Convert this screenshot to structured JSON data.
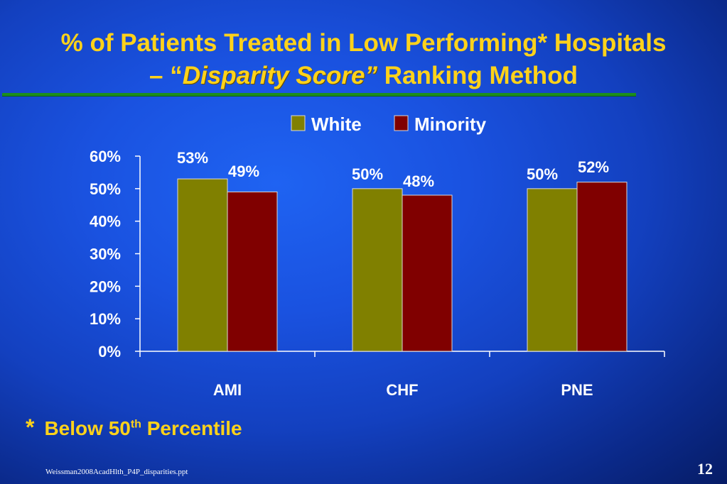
{
  "title": {
    "line1": "% of Patients Treated in Low Performing* Hospitals",
    "line2_prefix": "– “",
    "line2_emphasis": "Disparity Score”",
    "line2_suffix": " Ranking Method"
  },
  "chart_data": {
    "type": "bar",
    "categories": [
      "AMI",
      "CHF",
      "PNE"
    ],
    "series": [
      {
        "name": "White",
        "values": [
          53,
          50,
          50
        ],
        "labels": [
          "53%",
          "50%",
          "50%"
        ],
        "color": "#808000"
      },
      {
        "name": "Minority",
        "values": [
          49,
          48,
          52
        ],
        "labels": [
          "49%",
          "48%",
          "52%"
        ],
        "color": "#800000"
      }
    ],
    "ylim": [
      0,
      60
    ],
    "yticks": [
      "0%",
      "10%",
      "20%",
      "30%",
      "40%",
      "50%",
      "60%"
    ],
    "legend": "top-right",
    "grid": false
  },
  "footnote": {
    "star": "*",
    "text_before": "Below 50",
    "superscript": "th",
    "text_after": " Percentile"
  },
  "source": "Weissman2008AcadHlth_P4P_disparities.ppt",
  "page_number": "12",
  "colors": {
    "title": "#ffd21a",
    "rule": "#1c8e1c",
    "text": "#ffffff"
  }
}
